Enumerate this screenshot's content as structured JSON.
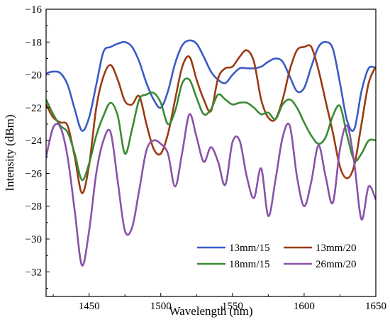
{
  "chart_data": {
    "type": "line",
    "xlabel": "Wavelength (nm)",
    "ylabel": "Intensity (dBm)",
    "xlim": [
      1420,
      1650
    ],
    "ylim": [
      -33.5,
      -16
    ],
    "xticks": [
      1450,
      1500,
      1550,
      1600,
      1650
    ],
    "yticks": [
      -16,
      -18,
      -20,
      -22,
      -24,
      -26,
      -28,
      -30,
      -32
    ],
    "grid": false,
    "legend_position": "bottom-right",
    "series": [
      {
        "name": "13mm/15",
        "color": "#3a5bc7",
        "x": [
          1420,
          1425,
          1430,
          1435,
          1440,
          1445,
          1450,
          1455,
          1460,
          1465,
          1470,
          1475,
          1480,
          1485,
          1490,
          1495,
          1500,
          1505,
          1510,
          1515,
          1520,
          1525,
          1530,
          1535,
          1540,
          1545,
          1550,
          1555,
          1560,
          1565,
          1570,
          1575,
          1580,
          1585,
          1590,
          1595,
          1600,
          1605,
          1610,
          1615,
          1620,
          1625,
          1630,
          1635,
          1640,
          1645,
          1650
        ],
        "y": [
          -19.9,
          -19.8,
          -19.9,
          -20.6,
          -22.1,
          -23.4,
          -22.6,
          -20.6,
          -18.6,
          -18.3,
          -18.1,
          -18.0,
          -18.3,
          -19.2,
          -20.5,
          -21.5,
          -22.0,
          -21.0,
          -19.3,
          -18.2,
          -17.9,
          -18.1,
          -18.9,
          -19.8,
          -20.3,
          -20.5,
          -20.0,
          -19.6,
          -19.6,
          -19.6,
          -19.5,
          -19.2,
          -19.0,
          -19.2,
          -20.1,
          -21.0,
          -20.8,
          -19.5,
          -18.3,
          -18.0,
          -18.4,
          -20.5,
          -22.8,
          -23.3,
          -21.0,
          -19.6,
          -19.6
        ]
      },
      {
        "name": "13mm/20",
        "color": "#9c3a12",
        "x": [
          1420,
          1425,
          1430,
          1435,
          1440,
          1445,
          1450,
          1455,
          1460,
          1465,
          1470,
          1475,
          1480,
          1485,
          1490,
          1495,
          1500,
          1505,
          1510,
          1515,
          1520,
          1525,
          1530,
          1535,
          1540,
          1545,
          1550,
          1555,
          1560,
          1565,
          1570,
          1575,
          1580,
          1585,
          1590,
          1595,
          1600,
          1605,
          1610,
          1615,
          1620,
          1625,
          1630,
          1635,
          1640,
          1645,
          1650
        ],
        "y": [
          -21.8,
          -22.6,
          -22.9,
          -23.1,
          -25.0,
          -27.2,
          -25.5,
          -22.0,
          -20.1,
          -19.4,
          -20.3,
          -21.6,
          -21.8,
          -21.3,
          -23.0,
          -24.5,
          -24.8,
          -23.6,
          -21.5,
          -19.5,
          -18.9,
          -20.3,
          -21.5,
          -22.2,
          -20.2,
          -19.6,
          -19.5,
          -18.9,
          -18.5,
          -19.2,
          -21.5,
          -22.6,
          -22.7,
          -21.5,
          -19.7,
          -18.5,
          -18.3,
          -18.3,
          -19.7,
          -21.6,
          -23.5,
          -25.6,
          -26.3,
          -25.5,
          -23.0,
          -20.5,
          -19.5
        ]
      },
      {
        "name": "18mm/15",
        "color": "#3a8a35",
        "x": [
          1420,
          1425,
          1430,
          1435,
          1440,
          1445,
          1450,
          1455,
          1460,
          1465,
          1470,
          1475,
          1480,
          1485,
          1490,
          1495,
          1500,
          1505,
          1510,
          1515,
          1520,
          1525,
          1530,
          1535,
          1540,
          1545,
          1550,
          1555,
          1560,
          1565,
          1570,
          1575,
          1580,
          1585,
          1590,
          1595,
          1600,
          1605,
          1610,
          1615,
          1620,
          1625,
          1630,
          1635,
          1640,
          1645,
          1650
        ],
        "y": [
          -21.5,
          -22.4,
          -23.1,
          -23.5,
          -24.8,
          -26.4,
          -25.4,
          -23.7,
          -22.5,
          -21.7,
          -22.5,
          -24.8,
          -23.3,
          -21.5,
          -21.2,
          -21.1,
          -21.7,
          -23.0,
          -22.2,
          -20.5,
          -20.3,
          -21.4,
          -22.4,
          -22.1,
          -21.2,
          -21.5,
          -21.8,
          -21.7,
          -21.7,
          -22.0,
          -22.4,
          -22.3,
          -22.7,
          -21.8,
          -21.5,
          -22.0,
          -22.9,
          -23.7,
          -24.2,
          -23.8,
          -22.5,
          -21.9,
          -23.7,
          -25.2,
          -24.8,
          -24.0,
          -24.0
        ]
      },
      {
        "name": "26mm/20",
        "color": "#8a52a8",
        "x": [
          1420,
          1425,
          1430,
          1435,
          1440,
          1445,
          1450,
          1455,
          1460,
          1465,
          1470,
          1475,
          1480,
          1485,
          1490,
          1495,
          1500,
          1505,
          1510,
          1515,
          1520,
          1525,
          1530,
          1535,
          1540,
          1545,
          1550,
          1555,
          1560,
          1565,
          1570,
          1575,
          1580,
          1585,
          1590,
          1595,
          1600,
          1605,
          1610,
          1615,
          1620,
          1625,
          1630,
          1635,
          1640,
          1645,
          1650
        ],
        "y": [
          -25.0,
          -23.2,
          -23.2,
          -25.0,
          -28.3,
          -31.6,
          -29.5,
          -26.0,
          -24.0,
          -23.5,
          -26.5,
          -29.5,
          -29.3,
          -27.0,
          -24.6,
          -24.0,
          -24.2,
          -24.8,
          -26.8,
          -24.7,
          -22.4,
          -23.8,
          -25.3,
          -24.4,
          -25.3,
          -26.7,
          -24.1,
          -24.0,
          -26.2,
          -27.5,
          -25.7,
          -28.6,
          -26.4,
          -23.8,
          -23.1,
          -26.2,
          -28.0,
          -26.5,
          -24.3,
          -26.2,
          -27.8,
          -24.5,
          -23.1,
          -25.4,
          -28.8,
          -26.8,
          -27.6
        ]
      }
    ]
  }
}
